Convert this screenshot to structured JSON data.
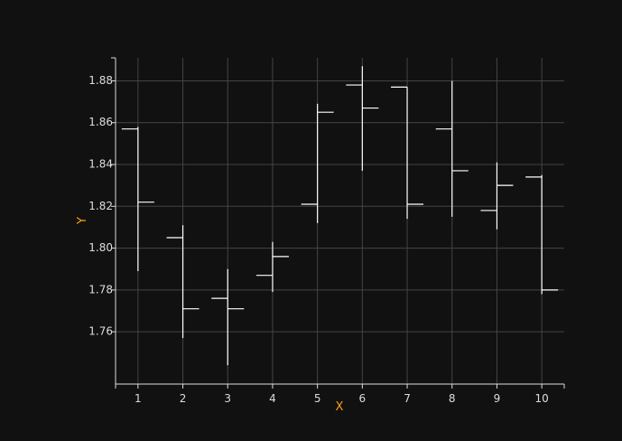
{
  "colors": {
    "background": "#111111",
    "grid": "#444444",
    "axis": "#dddddd",
    "tick_text": "#dddddd",
    "axis_title": "#ff9f1a",
    "ohlc": "#ffffff"
  },
  "chart_data": {
    "type": "ohlc",
    "xlabel": "X",
    "ylabel": "Y",
    "xlim": [
      0.5,
      10.5
    ],
    "ylim": [
      1.735,
      1.891
    ],
    "grid": true,
    "x_ticks": [
      "1",
      "2",
      "3",
      "4",
      "5",
      "6",
      "7",
      "8",
      "9",
      "10"
    ],
    "y_ticks": [
      "1.76",
      "1.78",
      "1.80",
      "1.82",
      "1.84",
      "1.86",
      "1.88"
    ],
    "x": [
      1,
      2,
      3,
      4,
      5,
      6,
      7,
      8,
      9,
      10
    ],
    "open": [
      1.857,
      1.805,
      1.776,
      1.787,
      1.821,
      1.878,
      1.877,
      1.857,
      1.818,
      1.834
    ],
    "high": [
      1.858,
      1.811,
      1.79,
      1.803,
      1.869,
      1.887,
      1.877,
      1.88,
      1.841,
      1.835
    ],
    "low": [
      1.789,
      1.757,
      1.744,
      1.779,
      1.812,
      1.837,
      1.814,
      1.815,
      1.809,
      1.778
    ],
    "close": [
      1.822,
      1.771,
      1.771,
      1.796,
      1.865,
      1.867,
      1.821,
      1.837,
      1.83,
      1.78
    ]
  }
}
